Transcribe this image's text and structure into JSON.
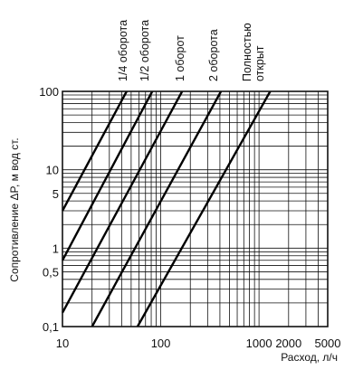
{
  "chart_data": {
    "type": "line",
    "title": "",
    "xlabel": "Расход, л/ч",
    "ylabel": "Сопротивление ΔP, м вод ст.",
    "x_scale": "log",
    "y_scale": "log",
    "xlim": [
      10,
      5000
    ],
    "ylim": [
      0.1,
      100
    ],
    "grid": true,
    "legend": "labels above plot",
    "x_tick_labels": [
      {
        "value": 10,
        "label": "10"
      },
      {
        "value": 100,
        "label": "100"
      },
      {
        "value": 1000,
        "label": "1000"
      },
      {
        "value": 2000,
        "label": "2000"
      },
      {
        "value": 5000,
        "label": "5000"
      }
    ],
    "y_tick_labels": [
      {
        "value": 0.1,
        "label": "0,1"
      },
      {
        "value": 0.5,
        "label": "0,5"
      },
      {
        "value": 1,
        "label": "1"
      },
      {
        "value": 5,
        "label": "5"
      },
      {
        "value": 10,
        "label": "10"
      },
      {
        "value": 100,
        "label": "100"
      }
    ],
    "series": [
      {
        "name": "1/4 оборота",
        "x": [
          10,
          45
        ],
        "y": [
          3,
          100
        ]
      },
      {
        "name": "1/2 оборота",
        "x": [
          10,
          82
        ],
        "y": [
          0.7,
          100
        ]
      },
      {
        "name": "1 оборот",
        "x": [
          10,
          165
        ],
        "y": [
          0.15,
          100
        ]
      },
      {
        "name": "2 оборота",
        "x": [
          20,
          410
        ],
        "y": [
          0.1,
          100
        ]
      },
      {
        "name": "Полностью открыт",
        "x": [
          58,
          1300
        ],
        "y": [
          0.1,
          100
        ]
      }
    ]
  }
}
